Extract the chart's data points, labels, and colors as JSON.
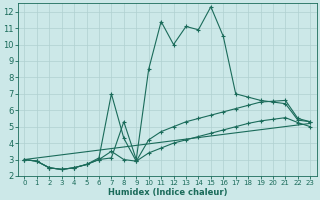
{
  "xlabel": "Humidex (Indice chaleur)",
  "bg_color": "#cce8e8",
  "line_color": "#1a6b5a",
  "grid_color": "#b0d0d0",
  "xlim": [
    -0.5,
    23.5
  ],
  "ylim": [
    2,
    12.5
  ],
  "xticks": [
    0,
    1,
    2,
    3,
    4,
    5,
    6,
    7,
    8,
    9,
    10,
    11,
    12,
    13,
    14,
    15,
    16,
    17,
    18,
    19,
    20,
    21,
    22,
    23
  ],
  "yticks": [
    2,
    3,
    4,
    5,
    6,
    7,
    8,
    9,
    10,
    11,
    12
  ],
  "series": [
    {
      "x": [
        0,
        1,
        2,
        3,
        4,
        5,
        6,
        7,
        8,
        9,
        10,
        11,
        12,
        13,
        14,
        15,
        16,
        17,
        18,
        19,
        20,
        21,
        22,
        23
      ],
      "y": [
        3.0,
        2.9,
        2.5,
        2.4,
        2.5,
        2.7,
        3.0,
        3.1,
        5.3,
        3.0,
        8.5,
        11.4,
        10.0,
        11.1,
        10.9,
        12.3,
        10.5,
        7.0,
        6.8,
        6.6,
        6.5,
        6.4,
        5.4,
        5.3
      ],
      "marker": true
    },
    {
      "x": [
        0,
        1,
        2,
        3,
        4,
        5,
        6,
        7,
        8,
        9,
        10,
        11,
        12,
        13,
        14,
        15,
        16,
        17,
        18,
        19,
        20,
        21,
        22,
        23
      ],
      "y": [
        3.0,
        2.9,
        2.5,
        2.4,
        2.5,
        2.7,
        3.1,
        7.0,
        4.3,
        2.9,
        4.2,
        4.7,
        5.0,
        5.3,
        5.5,
        5.7,
        5.9,
        6.1,
        6.3,
        6.5,
        6.55,
        6.6,
        5.5,
        5.3
      ],
      "marker": true
    },
    {
      "x": [
        0,
        1,
        2,
        3,
        4,
        5,
        6,
        7,
        8,
        9,
        10,
        11,
        12,
        13,
        14,
        15,
        16,
        17,
        18,
        19,
        20,
        21,
        22,
        23
      ],
      "y": [
        3.0,
        2.9,
        2.5,
        2.4,
        2.5,
        2.7,
        3.0,
        3.5,
        3.0,
        2.9,
        3.4,
        3.7,
        4.0,
        4.2,
        4.4,
        4.6,
        4.8,
        5.0,
        5.2,
        5.35,
        5.45,
        5.55,
        5.25,
        5.0
      ],
      "marker": true
    },
    {
      "x": [
        0,
        23
      ],
      "y": [
        3.0,
        5.2
      ],
      "marker": false
    }
  ]
}
